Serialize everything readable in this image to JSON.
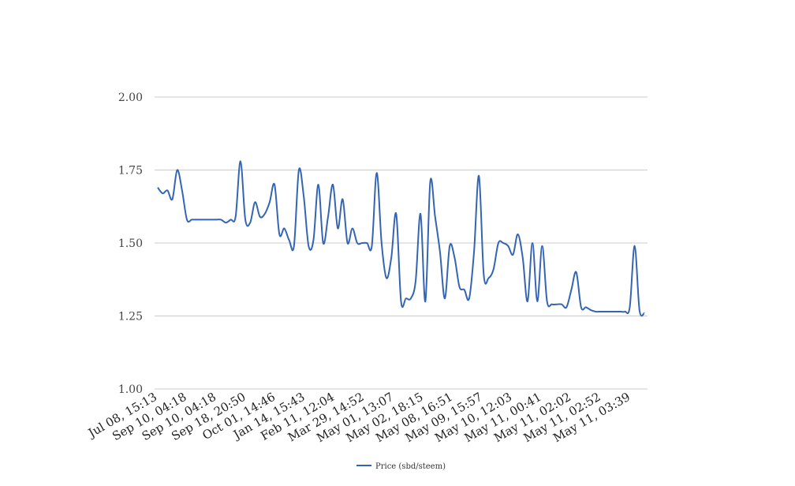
{
  "chart_data": {
    "type": "line",
    "title": "",
    "xlabel": "",
    "ylabel": "",
    "ylim": [
      1.0,
      2.0
    ],
    "yticks": [
      "1.00",
      "1.25",
      "1.50",
      "1.75",
      "2.00"
    ],
    "ytick_values": [
      1.0,
      1.25,
      1.5,
      1.75,
      2.0
    ],
    "xticks": [
      "Jul 08, 15:13",
      "Sep 10, 04:18",
      "Sep 10, 04:18",
      "Sep 18, 20:50",
      "Oct 01, 14:46",
      "Jan 14, 15:43",
      "Feb 11, 12:04",
      "Mar 29, 14:52",
      "May 01, 13:07",
      "May 02, 18:15",
      "May 08, 16:51",
      "May 09, 15:57",
      "May 10, 12:03",
      "May 11, 00:41",
      "May 11, 02:02",
      "May 11, 02:52",
      "May 11, 03:39"
    ],
    "grid": true,
    "legend_position": "bottom",
    "series": [
      {
        "name": "Price (sbd/steem)",
        "color": "#3465b3",
        "values": [
          1.69,
          1.67,
          1.68,
          1.65,
          1.75,
          1.68,
          1.58,
          1.58,
          1.58,
          1.58,
          1.58,
          1.58,
          1.58,
          1.58,
          1.57,
          1.58,
          1.59,
          1.78,
          1.58,
          1.57,
          1.64,
          1.59,
          1.6,
          1.64,
          1.7,
          1.53,
          1.55,
          1.51,
          1.49,
          1.75,
          1.66,
          1.49,
          1.51,
          1.7,
          1.5,
          1.59,
          1.7,
          1.55,
          1.65,
          1.5,
          1.55,
          1.5,
          1.5,
          1.5,
          1.49,
          1.74,
          1.5,
          1.38,
          1.45,
          1.6,
          1.3,
          1.31,
          1.31,
          1.37,
          1.6,
          1.3,
          1.71,
          1.59,
          1.47,
          1.31,
          1.49,
          1.45,
          1.35,
          1.34,
          1.31,
          1.47,
          1.73,
          1.39,
          1.38,
          1.41,
          1.5,
          1.5,
          1.49,
          1.46,
          1.53,
          1.45,
          1.3,
          1.5,
          1.3,
          1.49,
          1.3,
          1.29,
          1.29,
          1.29,
          1.28,
          1.34,
          1.4,
          1.28,
          1.28,
          1.27,
          1.265,
          1.265,
          1.265,
          1.265,
          1.265,
          1.265,
          1.265,
          1.28,
          1.49,
          1.27,
          1.26
        ]
      }
    ]
  }
}
